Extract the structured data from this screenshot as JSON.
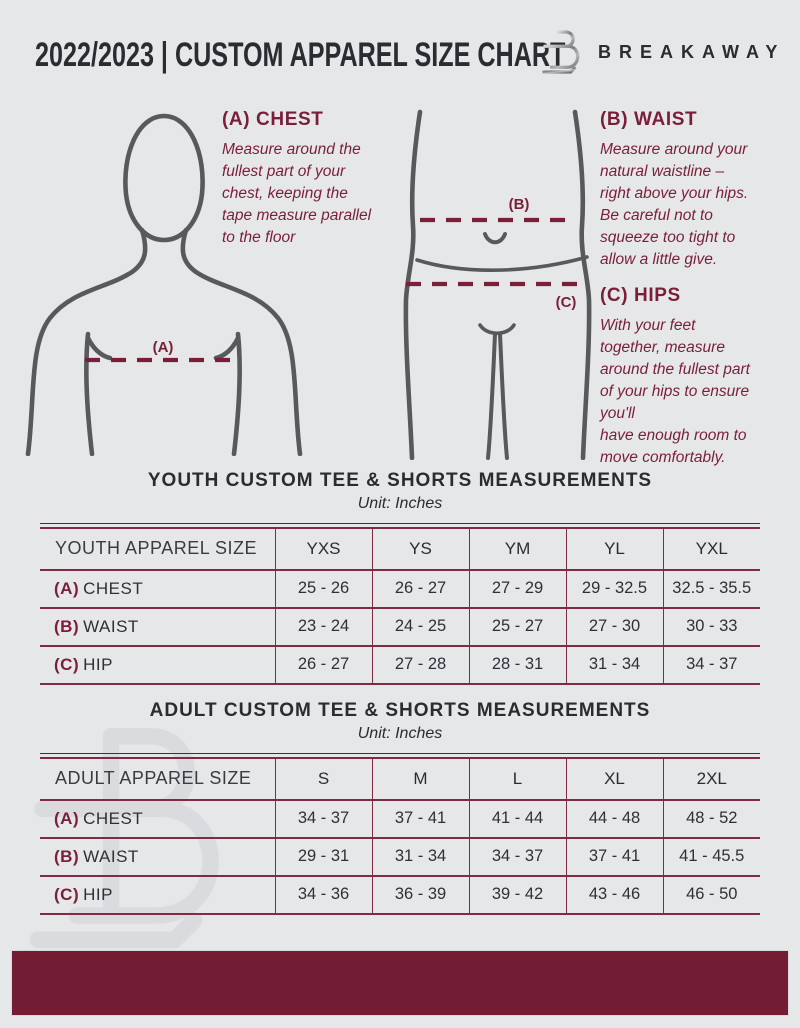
{
  "header": {
    "title": "2022/2023  |  CUSTOM APPAREL SIZE CHART",
    "brand": "BREAKAWAY"
  },
  "colors": {
    "background": "#E6E7E8",
    "accent_maroon": "#7A1E39",
    "table_line": "#7E2B43",
    "footer_bar": "#721D33",
    "figure_gray": "#58595C"
  },
  "guide": {
    "chest": {
      "label": "(A) CHEST",
      "marker": "(A)",
      "body": "Measure around the\nfullest part of your\nchest, keeping the\ntape measure parallel\nto the floor"
    },
    "waist": {
      "label": "(B) WAIST",
      "marker": "(B)",
      "body": "Measure around your\nnatural waistline –\nright above your hips.\nBe careful not to\nsqueeze too tight to\nallow a little give."
    },
    "hips": {
      "label": "(C) HIPS",
      "marker": "(C)",
      "body": "With your feet\ntogether, measure\naround the fullest part\nof your hips to ensure\nyou'll\nhave enough room to\nmove comfortably."
    }
  },
  "tables": [
    {
      "title": "YOUTH CUSTOM TEE & SHORTS MEASUREMENTS",
      "unit": "Unit: Inches",
      "size_header": "YOUTH APPAREL SIZE",
      "sizes": [
        "YXS",
        "YS",
        "YM",
        "YL",
        "YXL"
      ],
      "rows": [
        {
          "prefix": "(A)",
          "label": "CHEST",
          "values": [
            "25 - 26",
            "26 - 27",
            "27 - 29",
            "29 - 32.5",
            "32.5 - 35.5"
          ]
        },
        {
          "prefix": "(B)",
          "label": "WAIST",
          "values": [
            "23 - 24",
            "24 - 25",
            "25 - 27",
            "27 - 30",
            "30 - 33"
          ]
        },
        {
          "prefix": "(C)",
          "label": "HIP",
          "values": [
            "26 - 27",
            "27 - 28",
            "28 - 31",
            "31 - 34",
            "34 - 37"
          ]
        }
      ]
    },
    {
      "title": "ADULT CUSTOM TEE & SHORTS MEASUREMENTS",
      "unit": "Unit: Inches",
      "size_header": "ADULT APPAREL SIZE",
      "sizes": [
        "S",
        "M",
        "L",
        "XL",
        "2XL"
      ],
      "rows": [
        {
          "prefix": "(A)",
          "label": "CHEST",
          "values": [
            "34 - 37",
            "37 - 41",
            "41 - 44",
            "44 - 48",
            "48 - 52"
          ]
        },
        {
          "prefix": "(B)",
          "label": "WAIST",
          "values": [
            "29 - 31",
            "31 - 34",
            "34 - 37",
            "37 - 41",
            "41 - 45.5"
          ]
        },
        {
          "prefix": "(C)",
          "label": "HIP",
          "values": [
            "34 - 36",
            "36 - 39",
            "39 - 42",
            "43 - 46",
            "46 - 50"
          ]
        }
      ]
    }
  ]
}
